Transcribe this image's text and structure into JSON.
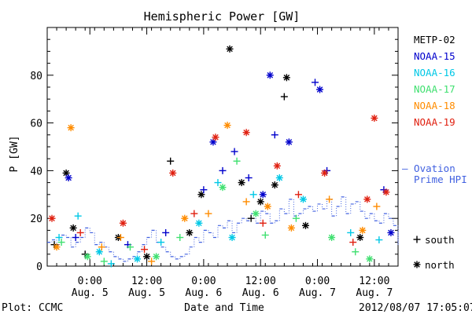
{
  "footer": {
    "plot_credit": "Plot: CCMC",
    "timestamp": "2012/08/07 17:05:07"
  },
  "chart_data": {
    "type": "scatter",
    "title": "Hemispheric Power [GW]",
    "xlabel": "Date and Time",
    "ylabel": "P [GW]",
    "ylim": [
      0,
      100
    ],
    "xlim": [
      "2012-08-04T15:00",
      "2012-08-07T17:00"
    ],
    "x_ticks": [
      {
        "x": "2012-08-05T00:00",
        "line1": "0:00",
        "line2": "Aug. 5"
      },
      {
        "x": "2012-08-05T12:00",
        "line1": "12:00",
        "line2": "Aug. 5"
      },
      {
        "x": "2012-08-06T00:00",
        "line1": "0:00",
        "line2": "Aug. 6"
      },
      {
        "x": "2012-08-06T12:00",
        "line1": "12:00",
        "line2": "Aug. 6"
      },
      {
        "x": "2012-08-07T00:00",
        "line1": "0:00",
        "line2": "Aug. 7"
      },
      {
        "x": "2012-08-07T12:00",
        "line1": "12:00",
        "line2": "Aug. 7"
      }
    ],
    "y_ticks": [
      0,
      20,
      40,
      60,
      80
    ],
    "grid": false,
    "legend_position": "right",
    "marker_legend": [
      {
        "symbol": "+",
        "label": "south"
      },
      {
        "symbol": "*",
        "label": "north"
      }
    ],
    "ovation_label": [
      "– Ovation",
      "Prime HPI"
    ],
    "series": [
      {
        "name": "METP-02",
        "color": "#000000",
        "points": [
          [
            "2012-08-04T16:30",
            9,
            "south"
          ],
          [
            "2012-08-04T19:00",
            39,
            "north"
          ],
          [
            "2012-08-04T20:30",
            16,
            "north"
          ],
          [
            "2012-08-04T23:00",
            5,
            "south"
          ],
          [
            "2012-08-05T06:00",
            12,
            "north"
          ],
          [
            "2012-08-05T12:00",
            4,
            "north"
          ],
          [
            "2012-08-05T17:00",
            44,
            "south"
          ],
          [
            "2012-08-05T21:00",
            14,
            "north"
          ],
          [
            "2012-08-05T23:30",
            30,
            "north"
          ],
          [
            "2012-08-06T05:30",
            91,
            "north"
          ],
          [
            "2012-08-06T08:00",
            35,
            "north"
          ],
          [
            "2012-08-06T10:00",
            20,
            "south"
          ],
          [
            "2012-08-06T12:00",
            27,
            "north"
          ],
          [
            "2012-08-06T15:00",
            34,
            "north"
          ],
          [
            "2012-08-06T17:00",
            71,
            "south"
          ],
          [
            "2012-08-06T17:30",
            79,
            "north"
          ],
          [
            "2012-08-06T21:30",
            17,
            "north"
          ],
          [
            "2012-08-07T09:00",
            12,
            "north"
          ]
        ]
      },
      {
        "name": "NOAA-15",
        "color": "#0000cc",
        "points": [
          [
            "2012-08-04T19:30",
            37,
            "north"
          ],
          [
            "2012-08-04T21:00",
            12,
            "south"
          ],
          [
            "2012-08-05T08:00",
            9,
            "south"
          ],
          [
            "2012-08-05T16:00",
            14,
            "south"
          ],
          [
            "2012-08-06T00:00",
            32,
            "south"
          ],
          [
            "2012-08-06T02:00",
            52,
            "north"
          ],
          [
            "2012-08-06T04:00",
            40,
            "south"
          ],
          [
            "2012-08-06T06:30",
            48,
            "south"
          ],
          [
            "2012-08-06T09:30",
            37,
            "south"
          ],
          [
            "2012-08-06T12:30",
            30,
            "north"
          ],
          [
            "2012-08-06T14:00",
            80,
            "north"
          ],
          [
            "2012-08-06T15:00",
            55,
            "south"
          ],
          [
            "2012-08-06T18:00",
            52,
            "north"
          ],
          [
            "2012-08-06T23:30",
            77,
            "south"
          ],
          [
            "2012-08-07T00:30",
            74,
            "north"
          ],
          [
            "2012-08-07T02:00",
            40,
            "south"
          ],
          [
            "2012-08-07T14:00",
            32,
            "south"
          ],
          [
            "2012-08-07T15:30",
            14,
            "north"
          ]
        ]
      },
      {
        "name": "NOAA-16",
        "color": "#00c8e6",
        "points": [
          [
            "2012-08-04T17:30",
            12,
            "south"
          ],
          [
            "2012-08-04T21:30",
            21,
            "south"
          ],
          [
            "2012-08-05T02:00",
            6,
            "north"
          ],
          [
            "2012-08-05T04:30",
            1,
            "south"
          ],
          [
            "2012-08-05T10:00",
            3,
            "north"
          ],
          [
            "2012-08-05T15:00",
            10,
            "south"
          ],
          [
            "2012-08-05T23:00",
            18,
            "north"
          ],
          [
            "2012-08-06T03:00",
            35,
            "south"
          ],
          [
            "2012-08-06T06:00",
            12,
            "north"
          ],
          [
            "2012-08-06T10:30",
            30,
            "south"
          ],
          [
            "2012-08-06T16:00",
            37,
            "north"
          ],
          [
            "2012-08-06T21:00",
            28,
            "north"
          ],
          [
            "2012-08-07T07:00",
            14,
            "south"
          ],
          [
            "2012-08-07T13:00",
            11,
            "south"
          ]
        ]
      },
      {
        "name": "NOAA-17",
        "color": "#40e070",
        "points": [
          [
            "2012-08-04T18:00",
            10,
            "south"
          ],
          [
            "2012-08-04T23:30",
            4,
            "north"
          ],
          [
            "2012-08-05T03:00",
            2,
            "south"
          ],
          [
            "2012-08-05T08:30",
            8,
            "south"
          ],
          [
            "2012-08-05T14:00",
            4,
            "north"
          ],
          [
            "2012-08-05T19:00",
            12,
            "south"
          ],
          [
            "2012-08-06T04:00",
            33,
            "north"
          ],
          [
            "2012-08-06T07:00",
            44,
            "south"
          ],
          [
            "2012-08-06T11:00",
            22,
            "north"
          ],
          [
            "2012-08-06T13:00",
            13,
            "south"
          ],
          [
            "2012-08-06T19:30",
            20,
            "south"
          ],
          [
            "2012-08-07T03:00",
            12,
            "north"
          ],
          [
            "2012-08-07T08:00",
            6,
            "south"
          ],
          [
            "2012-08-07T11:00",
            3,
            "north"
          ]
        ]
      },
      {
        "name": "NOAA-18",
        "color": "#ff8c00",
        "points": [
          [
            "2012-08-04T17:00",
            8,
            "north"
          ],
          [
            "2012-08-04T20:00",
            58,
            "north"
          ],
          [
            "2012-08-05T02:30",
            8,
            "south"
          ],
          [
            "2012-08-05T06:30",
            12,
            "south"
          ],
          [
            "2012-08-05T13:00",
            2,
            "south"
          ],
          [
            "2012-08-05T20:00",
            20,
            "north"
          ],
          [
            "2012-08-06T01:00",
            22,
            "south"
          ],
          [
            "2012-08-06T05:00",
            59,
            "north"
          ],
          [
            "2012-08-06T09:00",
            27,
            "south"
          ],
          [
            "2012-08-06T13:30",
            25,
            "north"
          ],
          [
            "2012-08-06T18:30",
            16,
            "north"
          ],
          [
            "2012-08-07T02:30",
            28,
            "south"
          ],
          [
            "2012-08-07T09:30",
            15,
            "north"
          ],
          [
            "2012-08-07T12:30",
            25,
            "south"
          ]
        ]
      },
      {
        "name": "NOAA-19",
        "color": "#e02010",
        "points": [
          [
            "2012-08-04T16:00",
            20,
            "north"
          ],
          [
            "2012-08-04T22:00",
            14,
            "south"
          ],
          [
            "2012-08-05T07:00",
            18,
            "north"
          ],
          [
            "2012-08-05T11:30",
            7,
            "south"
          ],
          [
            "2012-08-05T17:30",
            39,
            "north"
          ],
          [
            "2012-08-05T22:00",
            22,
            "south"
          ],
          [
            "2012-08-06T02:30",
            54,
            "north"
          ],
          [
            "2012-08-06T09:00",
            56,
            "north"
          ],
          [
            "2012-08-06T12:30",
            18,
            "south"
          ],
          [
            "2012-08-06T15:30",
            42,
            "north"
          ],
          [
            "2012-08-06T20:00",
            30,
            "south"
          ],
          [
            "2012-08-07T01:30",
            39,
            "north"
          ],
          [
            "2012-08-07T07:30",
            10,
            "south"
          ],
          [
            "2012-08-07T10:30",
            28,
            "north"
          ],
          [
            "2012-08-07T12:00",
            62,
            "north"
          ],
          [
            "2012-08-07T14:30",
            31,
            "north"
          ]
        ]
      }
    ],
    "ovation": {
      "name": "Ovation Prime HPI",
      "color": "#4060e0",
      "step_hours": 1,
      "start": "2012-08-04T15:00",
      "values": [
        10,
        11,
        9,
        13,
        12,
        8,
        10,
        12,
        16,
        14,
        9,
        10,
        8,
        6,
        4,
        3,
        2,
        3,
        4,
        6,
        9,
        12,
        15,
        10,
        8,
        6,
        4,
        3,
        4,
        5,
        8,
        12,
        10,
        15,
        14,
        12,
        17,
        16,
        19,
        14,
        18,
        20,
        19,
        22,
        18,
        23,
        22,
        18,
        19,
        24,
        22,
        28,
        21,
        22,
        24,
        25,
        23,
        26,
        24,
        28,
        21,
        25,
        29,
        22,
        26,
        27,
        23,
        20,
        22,
        19,
        18,
        22,
        20,
        17,
        16,
        13,
        12,
        15,
        14,
        12,
        10,
        13,
        11,
        9,
        12,
        10,
        13,
        12,
        12
      ]
    }
  }
}
